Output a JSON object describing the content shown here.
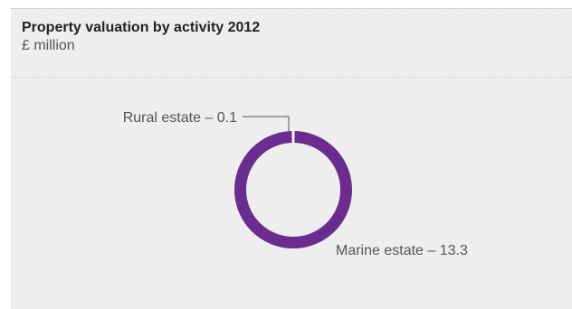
{
  "chart_data": {
    "type": "pie",
    "style": "donut",
    "title": "Property valuation by activity 2012",
    "subtitle": "£ million",
    "slices": [
      {
        "label": "Rural estate – 0.1",
        "value": 0.1,
        "color": "#ffffff"
      },
      {
        "label": "Marine estate – 13.3",
        "value": 13.3,
        "color": "#6a2c8e"
      }
    ]
  }
}
